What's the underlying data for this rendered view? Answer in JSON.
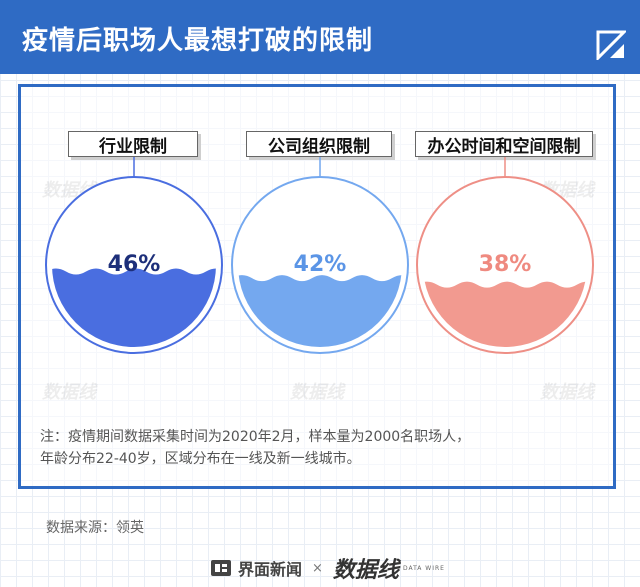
{
  "title": "疫情后职场人最想打破的限制",
  "chart_data": {
    "type": "gauge",
    "unit": "%",
    "categories": [
      "行业限制",
      "公司组织限制",
      "办公时间和空间限制"
    ],
    "values": [
      46,
      42,
      38
    ],
    "value_labels": [
      "46%",
      "42%",
      "38%"
    ],
    "colors": [
      "#4a6ee0",
      "#74a8ef",
      "#f29a90"
    ],
    "label_colors": [
      "#1d2f7a",
      "#5b95e6",
      "#ef8a80"
    ],
    "ring_colors": [
      "#4a6ee0",
      "#74a8ef",
      "#ee8f86"
    ]
  },
  "note": {
    "line1": "注：疫情期间数据采集时间为2020年2月，样本量为2000名职场人，",
    "line2": "年龄分布22-40岁，区域分布在一线及新一线城市。"
  },
  "source": "数据来源：领英",
  "footer": {
    "brand": "界面新闻",
    "times": "×",
    "brand2": "数据线",
    "brand2_sub": "DATA WIRE"
  }
}
